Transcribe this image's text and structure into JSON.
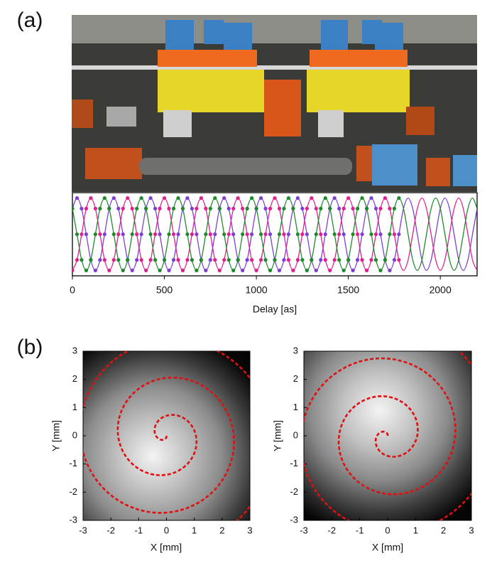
{
  "chart_data": [
    {
      "type": "line",
      "panel_label": "(a)",
      "xlabel": "Delay [as]",
      "xlim": [
        0,
        2200
      ],
      "xticks": [
        0,
        500,
        1000,
        1500,
        2000
      ],
      "ylim": [
        -1.15,
        1.15
      ],
      "x": [
        0,
        25,
        50,
        75,
        100,
        125,
        150,
        175,
        200,
        225,
        250,
        275,
        300,
        325,
        350,
        375,
        400,
        425,
        450,
        475,
        500,
        525,
        550,
        575,
        600,
        625,
        650,
        675,
        700,
        725,
        750,
        775,
        800,
        825,
        850,
        875,
        900,
        925,
        950,
        975,
        1000,
        1025,
        1050,
        1075,
        1100,
        1125,
        1150,
        1175,
        1200,
        1225,
        1250,
        1275,
        1300,
        1325,
        1350,
        1375,
        1400,
        1425,
        1450,
        1475,
        1500,
        1525,
        1550,
        1575,
        1600,
        1625,
        1650,
        1675,
        1700,
        1725,
        1750,
        1775,
        1800,
        1825,
        1850,
        1875,
        1900,
        1925,
        1950,
        1975,
        2000,
        2025,
        2050,
        2075,
        2100,
        2125,
        2150,
        2175,
        2200
      ],
      "points_x": [
        0,
        25,
        50,
        75,
        100,
        125,
        150,
        175,
        200,
        225,
        250,
        275,
        300,
        325,
        350,
        375,
        400,
        425,
        450,
        475,
        500,
        525,
        550,
        575,
        600,
        625,
        650,
        675,
        700,
        725,
        750,
        775,
        800,
        825,
        850,
        875,
        900,
        925,
        950,
        975,
        1000,
        1025,
        1050,
        1075,
        1100,
        1125,
        1150,
        1175,
        1200,
        1225,
        1250,
        1275,
        1300,
        1325,
        1350,
        1375,
        1400,
        1425,
        1450,
        1475,
        1500,
        1525,
        1550,
        1575,
        1600,
        1625,
        1650,
        1675,
        1700,
        1725,
        1750,
        1775
      ],
      "series": [
        {
          "color": "#7b3fd4",
          "values": [
            0.71,
            1,
            0.71,
            0,
            -0.71,
            -1,
            -0.71,
            0,
            0.71,
            1,
            0.71,
            0,
            -0.71,
            -1,
            -0.71,
            0,
            0.71,
            1,
            0.71,
            0,
            -0.71,
            -1,
            -0.71,
            0,
            0.71,
            1,
            0.71,
            0,
            -0.71,
            -1,
            -0.71,
            0,
            0.71,
            1,
            0.71,
            0,
            -0.71,
            -1,
            -0.71,
            0,
            0.71,
            1,
            0.71,
            0,
            -0.71,
            -1,
            -0.71,
            0,
            0.71,
            1,
            0.71,
            0,
            -0.71,
            -1,
            -0.71,
            0,
            0.71,
            1,
            0.71,
            0,
            -0.71,
            -1,
            -0.71,
            0,
            0.71,
            1,
            0.71,
            0,
            -0.71,
            -1,
            -0.71,
            0,
            0.71,
            1,
            0.71,
            0,
            -0.71,
            -1,
            -0.71,
            0,
            0.71,
            1,
            0.71,
            0,
            -0.71,
            -1,
            -0.71,
            0,
            0.71
          ],
          "points": [
            0.71,
            1,
            0.71,
            0,
            -0.71,
            -1,
            -0.71,
            0,
            0.71,
            1,
            0.71,
            0,
            -0.71,
            -1,
            -0.71,
            0,
            0.71,
            1,
            0.71,
            0,
            -0.71,
            -1,
            -0.71,
            0,
            0.71,
            1,
            0.71,
            0,
            -0.71,
            -1,
            -0.71,
            0,
            0.71,
            1,
            0.71,
            0,
            -0.71,
            -1,
            -0.71,
            0,
            0.71,
            1,
            0.71,
            0,
            -0.71,
            -1,
            -0.71,
            0,
            0.71,
            1,
            0.71,
            0,
            -0.71,
            -1,
            -0.71,
            0,
            0.71,
            1,
            0.71,
            0,
            -0.71,
            -1,
            -0.71,
            0,
            0.71,
            1,
            0.71,
            0,
            -0.71,
            -1,
            -0.71,
            0
          ]
        },
        {
          "color": "#e0208e",
          "values": [
            -1,
            -0.71,
            0,
            0.71,
            1,
            0.71,
            0,
            -0.71,
            -1,
            -0.71,
            0,
            0.71,
            1,
            0.71,
            0,
            -0.71,
            -1,
            -0.71,
            0,
            0.71,
            1,
            0.71,
            0,
            -0.71,
            -1,
            -0.71,
            0,
            0.71,
            1,
            0.71,
            0,
            -0.71,
            -1,
            -0.71,
            0,
            0.71,
            1,
            0.71,
            0,
            -0.71,
            -1,
            -0.71,
            0,
            0.71,
            1,
            0.71,
            0,
            -0.71,
            -1,
            -0.71,
            0,
            0.71,
            1,
            0.71,
            0,
            -0.71,
            -1,
            -0.71,
            0,
            0.71,
            1,
            0.71,
            0,
            -0.71,
            -1,
            -0.71,
            0,
            0.71,
            1,
            0.71,
            0,
            -0.71,
            -1,
            -0.71,
            0,
            0.71,
            1,
            0.71,
            0,
            -0.71,
            -1,
            -0.71,
            0,
            0.71,
            1,
            0.71,
            0,
            -0.71,
            -1
          ],
          "points": [
            -1,
            -0.71,
            0,
            0.71,
            1,
            0.71,
            0,
            -0.71,
            -1,
            -0.71,
            0,
            0.71,
            1,
            0.71,
            0,
            -0.71,
            -1,
            -0.71,
            0,
            0.71,
            1,
            0.71,
            0,
            -0.71,
            -1,
            -0.71,
            0,
            0.71,
            1,
            0.71,
            0,
            -0.71,
            -1,
            -0.71,
            0,
            0.71,
            1,
            0.71,
            0,
            -0.71,
            -1,
            -0.71,
            0,
            0.71,
            1,
            0.71,
            0,
            -0.71,
            -1,
            -0.71,
            0,
            0.71,
            1,
            0.71,
            0,
            -0.71,
            -1,
            -0.71,
            0,
            0.71,
            1,
            0.71,
            0,
            -0.71,
            -1,
            -0.71,
            0,
            0.71,
            1,
            0.71,
            0,
            -0.71
          ]
        },
        {
          "color": "#1e8a2c",
          "values": [
            0.71,
            0,
            -0.71,
            -1,
            -0.71,
            0,
            0.71,
            1,
            0.71,
            0,
            -0.71,
            -1,
            -0.71,
            0,
            0.71,
            1,
            0.71,
            0,
            -0.71,
            -1,
            -0.71,
            0,
            0.71,
            1,
            0.71,
            0,
            -0.71,
            -1,
            -0.71,
            0,
            0.71,
            1,
            0.71,
            0,
            -0.71,
            -1,
            -0.71,
            0,
            0.71,
            1,
            0.71,
            0,
            -0.71,
            -1,
            -0.71,
            0,
            0.71,
            1,
            0.71,
            0,
            -0.71,
            -1,
            -0.71,
            0,
            0.71,
            1,
            0.71,
            0,
            -0.71,
            -1,
            -0.71,
            0,
            0.71,
            1,
            0.71,
            0,
            -0.71,
            -1,
            -0.71,
            0,
            0.71,
            1,
            0.71,
            0,
            -0.71,
            -1,
            -0.71,
            0,
            0.71,
            1,
            0.71,
            0,
            -0.71,
            -1,
            -0.71,
            0,
            0.71,
            1,
            0.71
          ],
          "points": [
            0.71,
            0,
            -0.71,
            -1,
            -0.71,
            0,
            0.71,
            1,
            0.71,
            0,
            -0.71,
            -1,
            -0.71,
            0,
            0.71,
            1,
            0.71,
            0,
            -0.71,
            -1,
            -0.71,
            0,
            0.71,
            1,
            0.71,
            0,
            -0.71,
            -1,
            -0.71,
            0,
            0.71,
            1,
            0.71,
            0,
            -0.71,
            -1,
            -0.71,
            0,
            0.71,
            1,
            0.71,
            0,
            -0.71,
            -1,
            -0.71,
            0,
            0.71,
            1,
            0.71,
            0,
            -0.71,
            -1,
            -0.71,
            0,
            0.71,
            1,
            0.71,
            0,
            -0.71,
            -1,
            -0.71,
            0,
            0.71,
            1,
            0.71,
            0,
            -0.71,
            -1,
            -0.71,
            0,
            0.71,
            1
          ]
        }
      ]
    },
    {
      "type": "heatmap",
      "panel_label": "(b)",
      "xlabel": "X [mm]",
      "ylabel": "Y [mm]",
      "xlim": [
        -3,
        3
      ],
      "ylim": [
        -3,
        3
      ],
      "xticks": [
        -3,
        -2,
        -1,
        0,
        1,
        2,
        3
      ],
      "yticks": [
        -3,
        -2,
        -1,
        0,
        1,
        2,
        3
      ]
    },
    {
      "type": "heatmap",
      "xlabel": "X [mm]",
      "ylabel": "Y [mm]",
      "xlim": [
        -3,
        3
      ],
      "ylim": [
        -3,
        3
      ],
      "xticks": [
        -3,
        -2,
        -1,
        0,
        1,
        2,
        3
      ],
      "yticks": [
        -3,
        -2,
        -1,
        0,
        1,
        2,
        3
      ]
    }
  ]
}
